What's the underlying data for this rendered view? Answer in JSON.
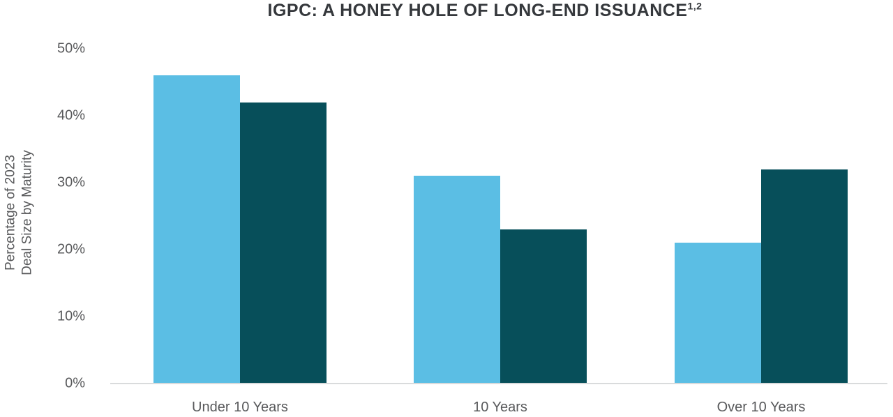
{
  "title": {
    "text": "IGPC: A HONEY HOLE OF LONG-END ISSUANCE",
    "superscript": "1,2"
  },
  "y_axis": {
    "label_line1": "Percentage of 2023",
    "label_line2": "Deal Size by Maturity",
    "ticks": [
      "50%",
      "40%",
      "30%",
      "20%",
      "10%",
      "0%"
    ]
  },
  "x_axis": {
    "categories": [
      "Under 10 Years",
      "10 Years",
      "Over 10 Years"
    ]
  },
  "colors": {
    "light_blue": "#5bbee4",
    "dark_teal": "#074f5a",
    "title_text": "#35383c",
    "axis_text": "#58595b",
    "axis_line": "#d9dbdc",
    "background": "#ffffff"
  },
  "chart_data": {
    "type": "bar",
    "title": "IGPC: A HONEY HOLE OF LONG-END ISSUANCE¹,²",
    "categories": [
      "Under 10 Years",
      "10 Years",
      "Over 10 Years"
    ],
    "series": [
      {
        "name": "light blue (left bar of each pair)",
        "color": "#5bbee4",
        "values": [
          46,
          31,
          21
        ]
      },
      {
        "name": "dark teal (right bar of each pair)",
        "color": "#074f5a",
        "values": [
          42,
          23,
          32
        ]
      }
    ],
    "xlabel": "",
    "ylabel": "Percentage of 2023 Deal Size by Maturity",
    "ylim": [
      0,
      50
    ],
    "yticks": [
      0,
      10,
      20,
      30,
      40,
      50
    ],
    "ytick_format": "percent",
    "grid": false,
    "legend": "none",
    "bar_layout": "grouped, bars within a group touching"
  }
}
